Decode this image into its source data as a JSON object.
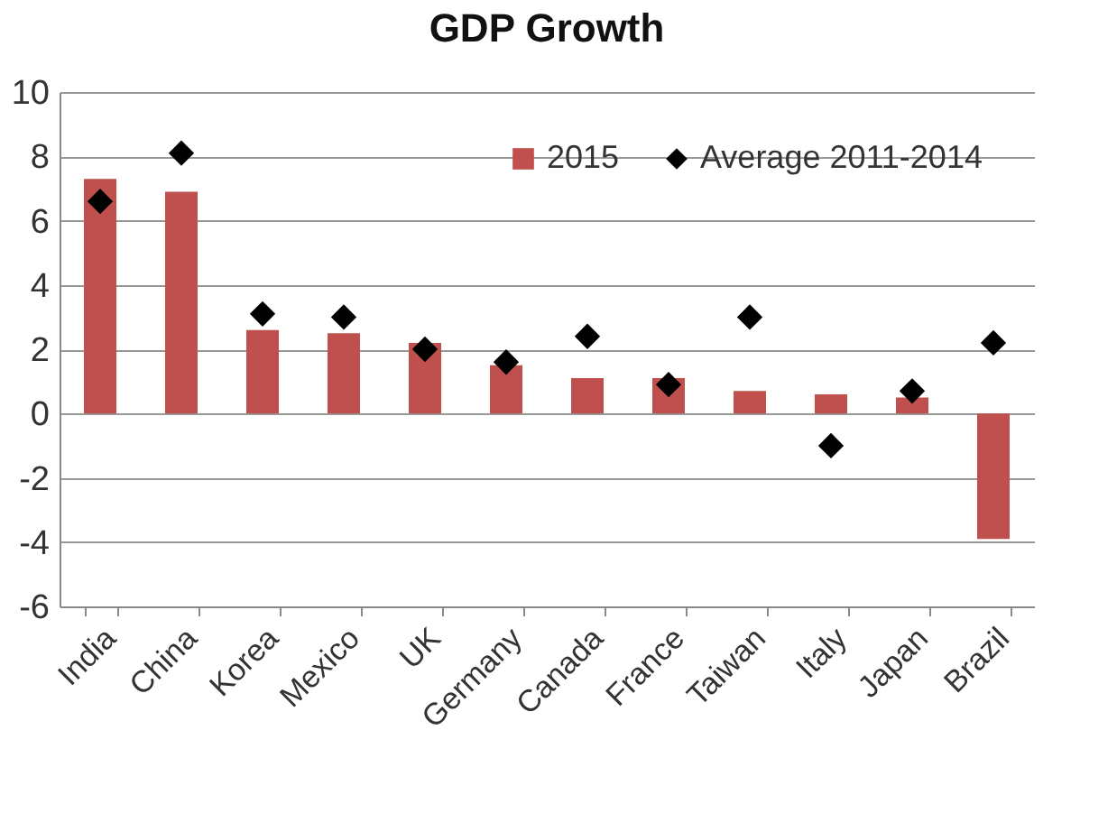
{
  "chart_data": {
    "type": "bar",
    "title": "GDP Growth",
    "categories": [
      "India",
      "China",
      "Korea",
      "Mexico",
      "UK",
      "Germany",
      "Canada",
      "France",
      "Taiwan",
      "Italy",
      "Japan",
      "Brazil"
    ],
    "series": [
      {
        "name": "2015",
        "color": "#c0504d",
        "values": [
          7.3,
          6.9,
          2.6,
          2.5,
          2.2,
          1.5,
          1.1,
          1.1,
          0.7,
          0.6,
          0.5,
          -3.9
        ]
      },
      {
        "name": "Average 2011-2014",
        "type": "scatter",
        "marker": "diamond",
        "color": "#000000",
        "values": [
          6.6,
          8.1,
          3.1,
          3.0,
          2.0,
          1.6,
          2.4,
          0.9,
          3.0,
          -1.0,
          0.7,
          2.2
        ]
      }
    ],
    "ylim": [
      -6,
      10
    ],
    "yticks": [
      -6,
      -4,
      -2,
      0,
      2,
      4,
      6,
      8,
      10
    ],
    "grid": "y",
    "legend": "top right"
  }
}
